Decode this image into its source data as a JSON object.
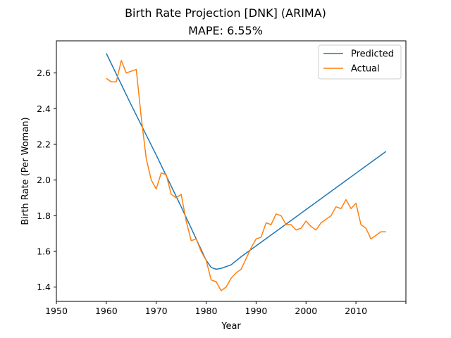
{
  "chart_data": {
    "type": "line",
    "title": "Birth Rate Projection [DNK] (ARIMA)",
    "subtitle": "MAPE: 6.55%",
    "xlabel": "Year",
    "ylabel": "Birth Rate (Per Woman)",
    "xlim": [
      1950,
      2020
    ],
    "ylim": [
      1.32,
      2.78
    ],
    "xticks": [
      1950,
      1960,
      1970,
      1980,
      1990,
      2000,
      2010,
      2020
    ],
    "xtick_labels": [
      "1950",
      "1960",
      "1970",
      "1980",
      "1990",
      "2000",
      "2010",
      ""
    ],
    "yticks": [
      1.4,
      1.6,
      1.8,
      2.0,
      2.2,
      2.4,
      2.6
    ],
    "ytick_labels": [
      "1.4",
      "1.6",
      "1.8",
      "2.0",
      "2.2",
      "2.4",
      "2.6"
    ],
    "legend_position": "top-right",
    "grid": false,
    "series": [
      {
        "name": "Predicted",
        "color": "#1f77b4",
        "points": [
          [
            1960,
            2.71
          ],
          [
            1965,
            2.42
          ],
          [
            1970,
            2.14
          ],
          [
            1975,
            1.85
          ],
          [
            1980,
            1.55
          ],
          [
            1981,
            1.51
          ],
          [
            1982,
            1.5
          ],
          [
            1983,
            1.505
          ],
          [
            1985,
            1.525
          ],
          [
            1987,
            1.57
          ],
          [
            2016,
            2.16
          ]
        ]
      },
      {
        "name": "Actual",
        "color": "#ff7f0e",
        "points": [
          [
            1960,
            2.57
          ],
          [
            1961,
            2.55
          ],
          [
            1962,
            2.55
          ],
          [
            1963,
            2.67
          ],
          [
            1964,
            2.6
          ],
          [
            1965,
            2.61
          ],
          [
            1966,
            2.62
          ],
          [
            1967,
            2.35
          ],
          [
            1968,
            2.12
          ],
          [
            1969,
            2.0
          ],
          [
            1970,
            1.95
          ],
          [
            1971,
            2.04
          ],
          [
            1972,
            2.03
          ],
          [
            1973,
            1.92
          ],
          [
            1974,
            1.9
          ],
          [
            1975,
            1.92
          ],
          [
            1976,
            1.77
          ],
          [
            1977,
            1.66
          ],
          [
            1978,
            1.67
          ],
          [
            1979,
            1.6
          ],
          [
            1980,
            1.55
          ],
          [
            1981,
            1.44
          ],
          [
            1982,
            1.43
          ],
          [
            1983,
            1.38
          ],
          [
            1984,
            1.4
          ],
          [
            1985,
            1.45
          ],
          [
            1986,
            1.48
          ],
          [
            1987,
            1.5
          ],
          [
            1988,
            1.56
          ],
          [
            1989,
            1.62
          ],
          [
            1990,
            1.67
          ],
          [
            1991,
            1.68
          ],
          [
            1992,
            1.76
          ],
          [
            1993,
            1.75
          ],
          [
            1994,
            1.81
          ],
          [
            1995,
            1.8
          ],
          [
            1996,
            1.75
          ],
          [
            1997,
            1.75
          ],
          [
            1998,
            1.72
          ],
          [
            1999,
            1.73
          ],
          [
            2000,
            1.77
          ],
          [
            2001,
            1.74
          ],
          [
            2002,
            1.72
          ],
          [
            2003,
            1.76
          ],
          [
            2004,
            1.78
          ],
          [
            2005,
            1.8
          ],
          [
            2006,
            1.85
          ],
          [
            2007,
            1.84
          ],
          [
            2008,
            1.89
          ],
          [
            2009,
            1.84
          ],
          [
            2010,
            1.87
          ],
          [
            2011,
            1.75
          ],
          [
            2012,
            1.73
          ],
          [
            2013,
            1.67
          ],
          [
            2014,
            1.69
          ],
          [
            2015,
            1.71
          ],
          [
            2016,
            1.71
          ]
        ]
      }
    ]
  }
}
